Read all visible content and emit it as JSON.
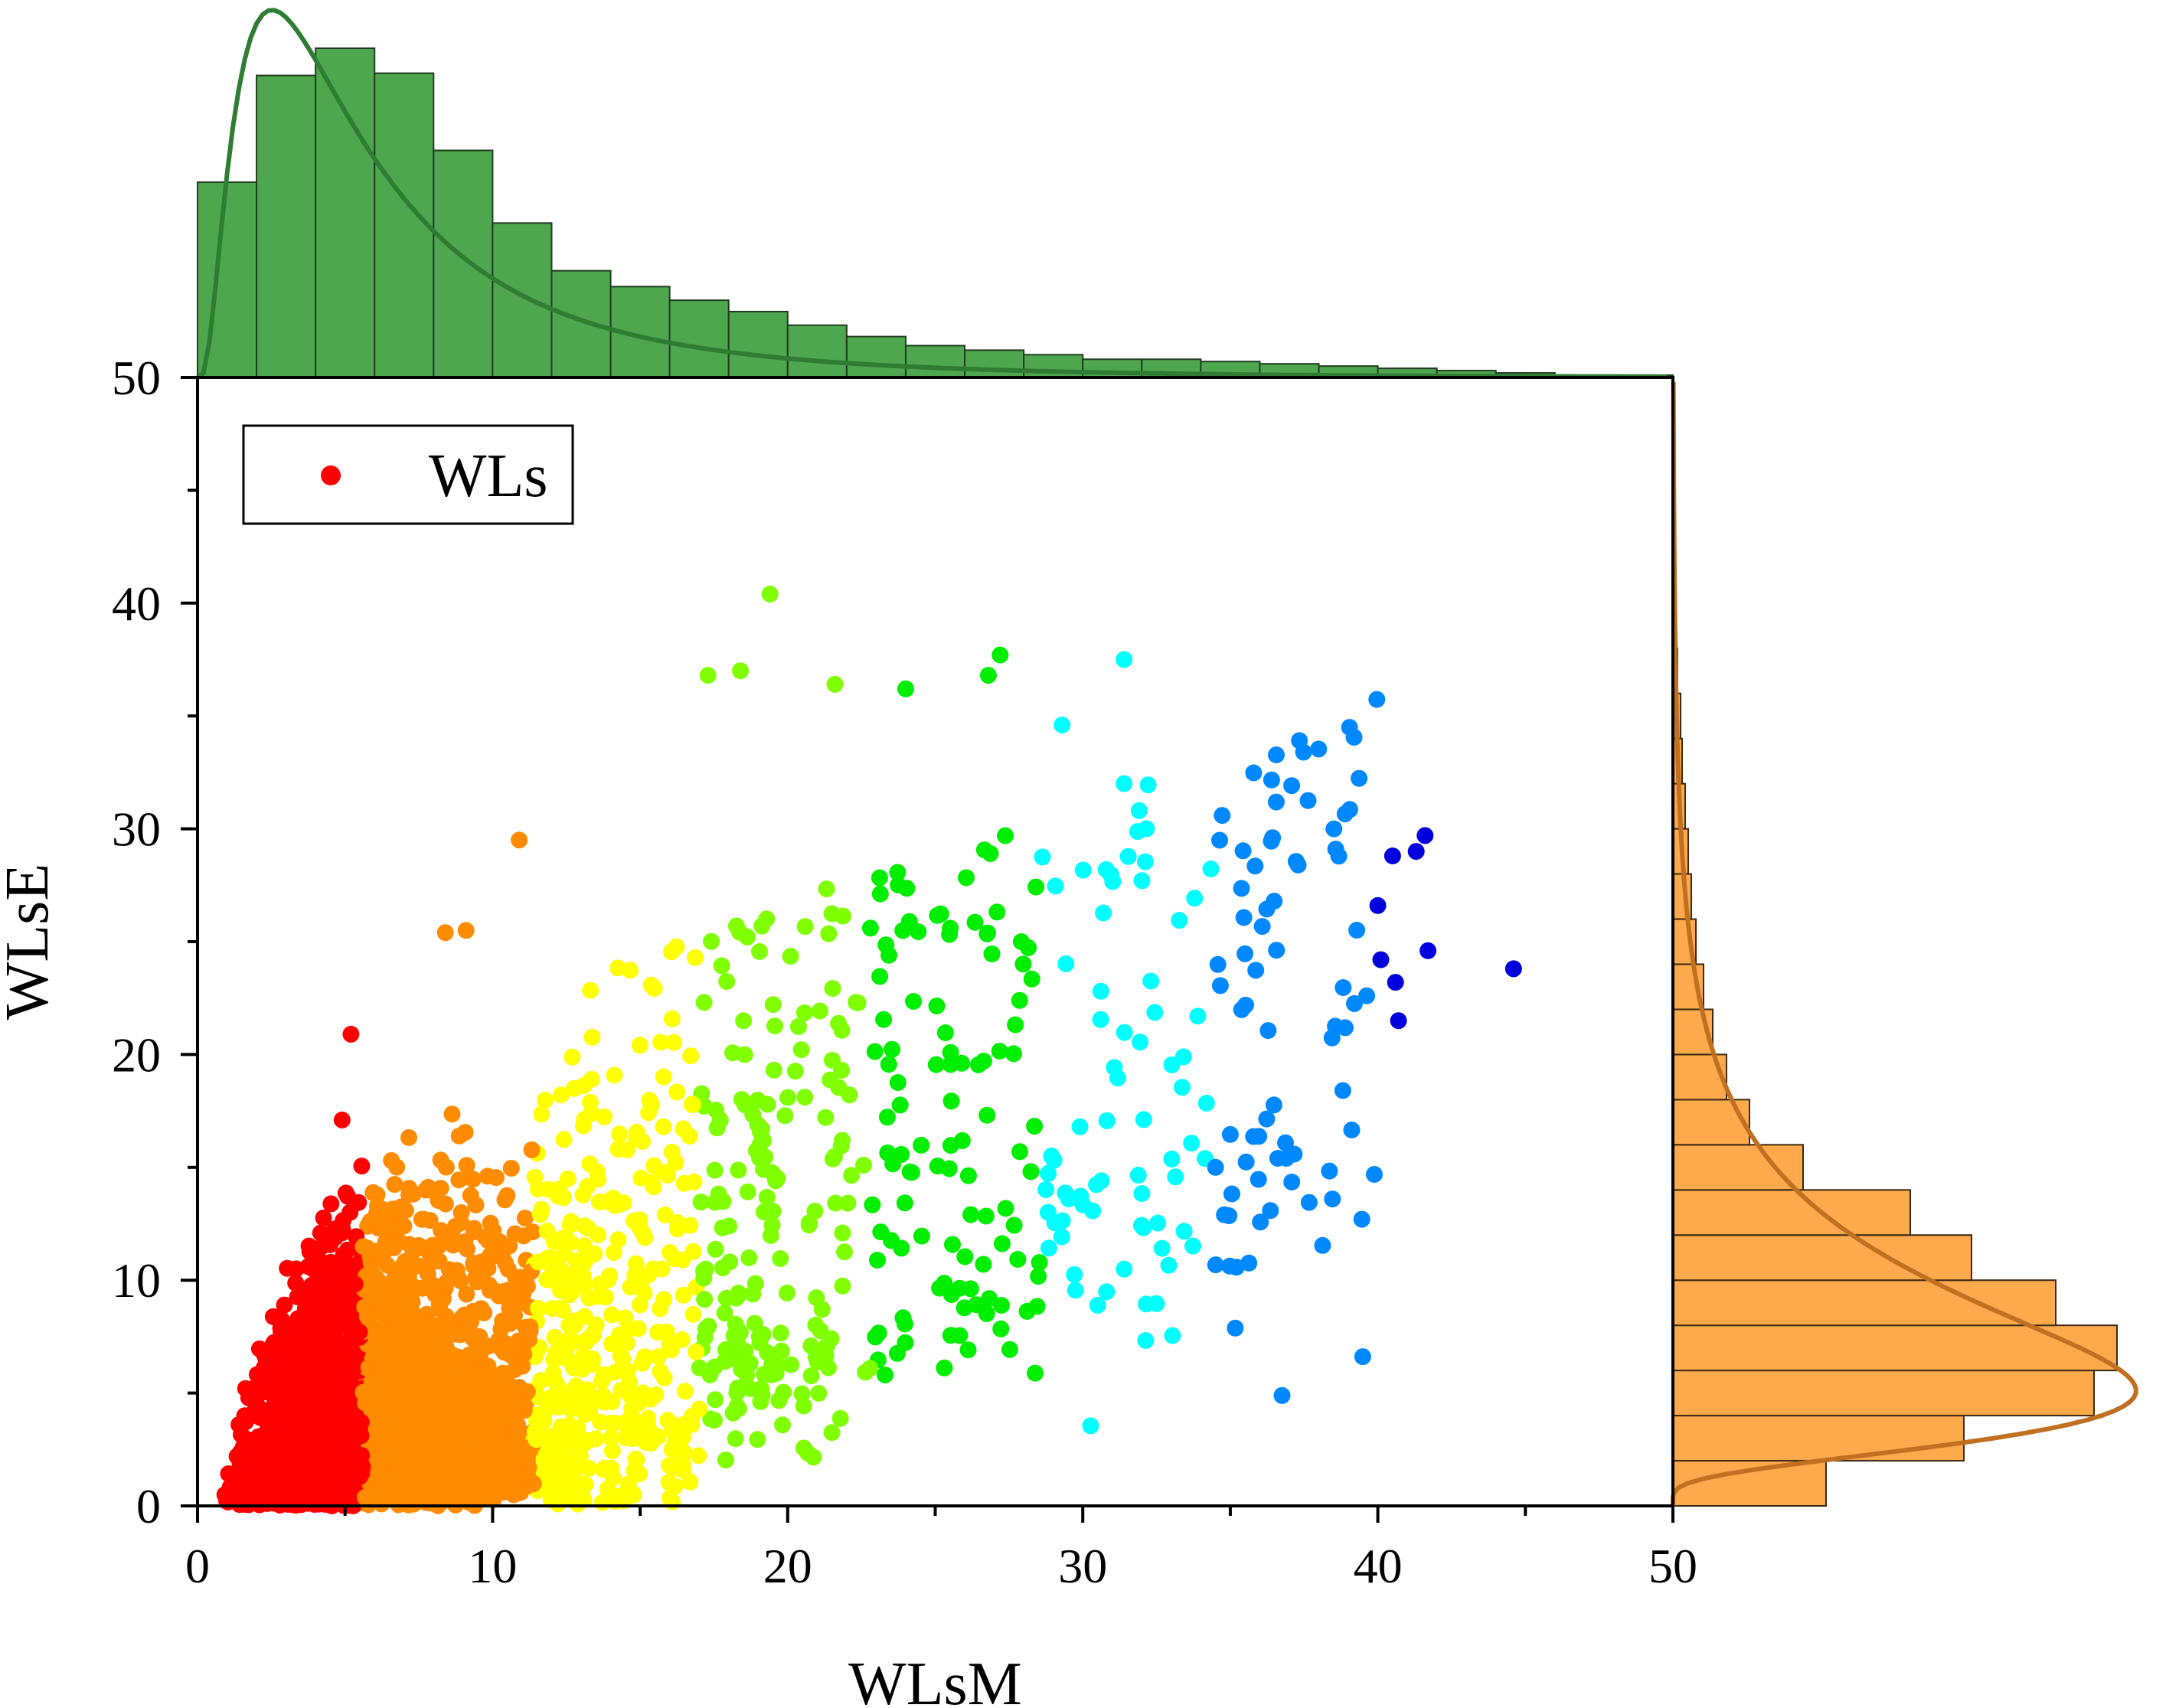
{
  "chart_data": {
    "type": "scatter",
    "xlabel": "WLsM",
    "ylabel": "WLsE",
    "xlim": [
      0,
      50
    ],
    "ylim": [
      0,
      50
    ],
    "x_ticks": [
      "0",
      "10",
      "20",
      "30",
      "40",
      "50"
    ],
    "y_ticks": [
      "0",
      "10",
      "20",
      "30",
      "40",
      "50"
    ],
    "legend": {
      "position": "top-left",
      "label": "WLs",
      "marker_color": "#ff0000"
    },
    "color_bands": [
      {
        "x_from": 0,
        "x_to": 5.6,
        "color": "#ff0000"
      },
      {
        "x_from": 5.6,
        "x_to": 11.4,
        "color": "#ff8c00"
      },
      {
        "x_from": 11.4,
        "x_to": 17.0,
        "color": "#ffff00"
      },
      {
        "x_from": 17.0,
        "x_to": 22.8,
        "color": "#80ff00"
      },
      {
        "x_from": 22.8,
        "x_to": 28.6,
        "color": "#00ee00"
      },
      {
        "x_from": 28.6,
        "x_to": 34.4,
        "color": "#00ffff"
      },
      {
        "x_from": 34.4,
        "x_to": 40.0,
        "color": "#0088ff"
      },
      {
        "x_from": 40.0,
        "x_to": 50.0,
        "color": "#0000dd"
      }
    ],
    "notable_points": [
      [
        19.4,
        40.4
      ],
      [
        27.2,
        37.7
      ],
      [
        31.4,
        37.5
      ],
      [
        17.3,
        36.8
      ],
      [
        18.4,
        37.0
      ],
      [
        21.6,
        36.4
      ],
      [
        24.0,
        36.2
      ],
      [
        26.8,
        36.8
      ],
      [
        29.3,
        34.6
      ],
      [
        31.4,
        32.0
      ],
      [
        41.6,
        29.7
      ],
      [
        41.3,
        29.0
      ],
      [
        40.5,
        28.8
      ],
      [
        44.6,
        23.8
      ],
      [
        41.7,
        24.6
      ],
      [
        40.1,
        24.2
      ],
      [
        40.6,
        23.2
      ],
      [
        40.7,
        21.5
      ],
      [
        40.0,
        26.6
      ],
      [
        37.3,
        28.4
      ],
      [
        34.8,
        12.9
      ],
      [
        34.5,
        15.0
      ],
      [
        36.9,
        15.4
      ],
      [
        23.3,
        5.8
      ],
      [
        19.1,
        5.2
      ],
      [
        5.2,
        20.9
      ],
      [
        4.9,
        17.1
      ],
      [
        10.9,
        29.5
      ],
      [
        9.1,
        25.5
      ],
      [
        8.4,
        25.4
      ]
    ],
    "histogram_x": {
      "color": "#4ea64e",
      "bins": [
        {
          "x0": 0,
          "x1": 2,
          "count": 86
        },
        {
          "x0": 2,
          "x1": 4,
          "count": 133
        },
        {
          "x0": 4,
          "x1": 6,
          "count": 145
        },
        {
          "x0": 6,
          "x1": 8,
          "count": 134
        },
        {
          "x0": 8,
          "x1": 10,
          "count": 100
        },
        {
          "x0": 10,
          "x1": 12,
          "count": 68
        },
        {
          "x0": 12,
          "x1": 14,
          "count": 47
        },
        {
          "x0": 14,
          "x1": 16,
          "count": 40
        },
        {
          "x0": 16,
          "x1": 18,
          "count": 34
        },
        {
          "x0": 18,
          "x1": 20,
          "count": 29
        },
        {
          "x0": 20,
          "x1": 22,
          "count": 23
        },
        {
          "x0": 22,
          "x1": 24,
          "count": 18
        },
        {
          "x0": 24,
          "x1": 26,
          "count": 14
        },
        {
          "x0": 26,
          "x1": 28,
          "count": 12
        },
        {
          "x0": 28,
          "x1": 30,
          "count": 10
        },
        {
          "x0": 30,
          "x1": 32,
          "count": 8
        },
        {
          "x0": 32,
          "x1": 34,
          "count": 8
        },
        {
          "x0": 34,
          "x1": 36,
          "count": 7
        },
        {
          "x0": 36,
          "x1": 38,
          "count": 6
        },
        {
          "x0": 38,
          "x1": 40,
          "count": 5
        },
        {
          "x0": 40,
          "x1": 42,
          "count": 4
        },
        {
          "x0": 42,
          "x1": 44,
          "count": 3
        },
        {
          "x0": 44,
          "x1": 46,
          "count": 2
        },
        {
          "x0": 46,
          "x1": 48,
          "count": 1
        },
        {
          "x0": 48,
          "x1": 50,
          "count": 1
        }
      ],
      "curve": "lognormal fit",
      "curve_color": "#2e7d32"
    },
    "histogram_y": {
      "color": "#ffa94d",
      "bins": [
        {
          "y0": 0,
          "y1": 2,
          "count": 100
        },
        {
          "y0": 2,
          "y1": 4,
          "count": 190
        },
        {
          "y0": 4,
          "y1": 6,
          "count": 275
        },
        {
          "y0": 6,
          "y1": 8,
          "count": 290
        },
        {
          "y0": 8,
          "y1": 10,
          "count": 250
        },
        {
          "y0": 10,
          "y1": 12,
          "count": 195
        },
        {
          "y0": 12,
          "y1": 14,
          "count": 155
        },
        {
          "y0": 14,
          "y1": 16,
          "count": 85
        },
        {
          "y0": 16,
          "y1": 18,
          "count": 50
        },
        {
          "y0": 18,
          "y1": 20,
          "count": 35
        },
        {
          "y0": 20,
          "y1": 22,
          "count": 26
        },
        {
          "y0": 22,
          "y1": 24,
          "count": 20
        },
        {
          "y0": 24,
          "y1": 26,
          "count": 15
        },
        {
          "y0": 26,
          "y1": 28,
          "count": 12
        },
        {
          "y0": 28,
          "y1": 30,
          "count": 10
        },
        {
          "y0": 30,
          "y1": 32,
          "count": 8
        },
        {
          "y0": 32,
          "y1": 34,
          "count": 6
        },
        {
          "y0": 34,
          "y1": 36,
          "count": 5
        },
        {
          "y0": 36,
          "y1": 38,
          "count": 3
        }
      ],
      "curve": "lognormal fit",
      "curve_color": "#c07020"
    }
  }
}
